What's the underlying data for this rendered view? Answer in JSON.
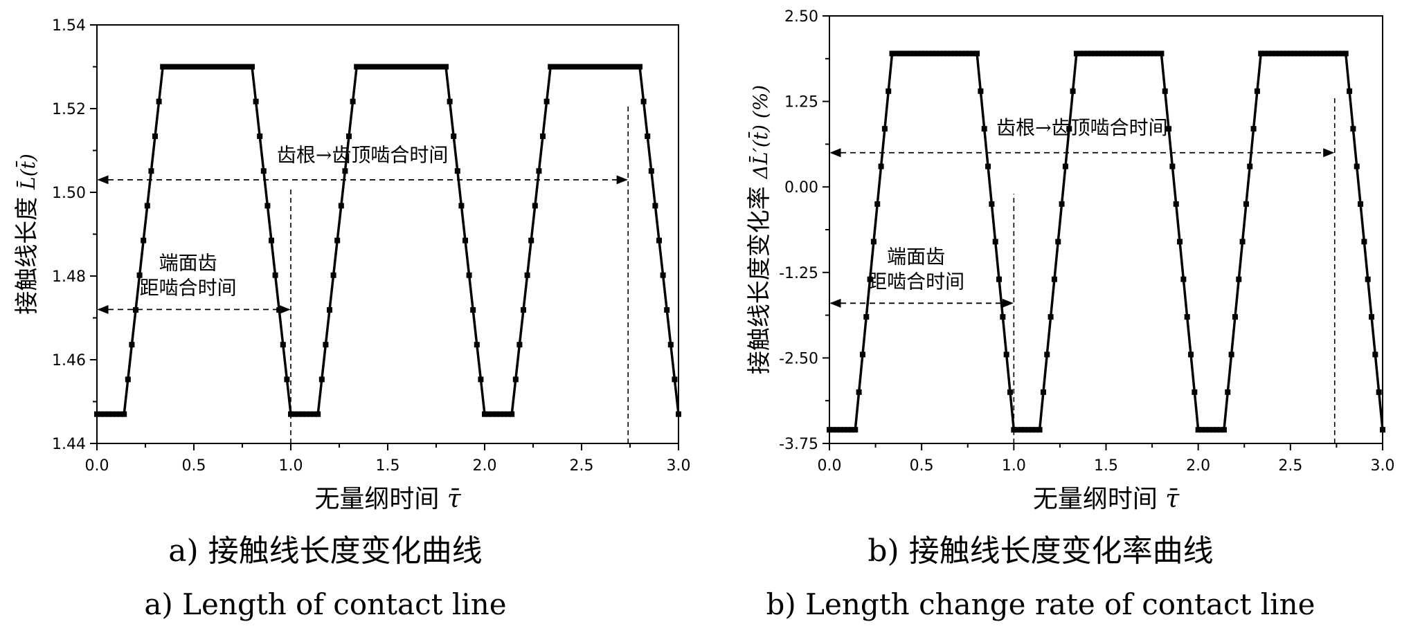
{
  "chart_data": [
    {
      "type": "line",
      "panel": "a",
      "xlabel_text": "无量纲时间",
      "xlabel_symbol": "τ̄",
      "ylabel_text": "接触线长度",
      "ylabel_symbol": "L̄(t̄)",
      "xlim": [
        0.0,
        3.0
      ],
      "ylim": [
        1.44,
        1.54
      ],
      "xticks": [
        "0.0",
        "0.5",
        "1.0",
        "1.5",
        "2.0",
        "2.5",
        "3.0"
      ],
      "yticks": [
        "1.44",
        "1.46",
        "1.48",
        "1.50",
        "1.52",
        "1.54"
      ],
      "series": [
        {
          "x": [
            0.0,
            0.14,
            0.34,
            0.8,
            1.0,
            1.0,
            1.14,
            1.34,
            1.8,
            2.0,
            2.0,
            2.14,
            2.34,
            2.8,
            3.0
          ],
          "y": [
            1.447,
            1.447,
            1.53,
            1.53,
            1.447,
            1.447,
            1.447,
            1.53,
            1.53,
            1.447,
            1.447,
            1.447,
            1.53,
            1.53,
            1.447
          ]
        }
      ],
      "annotations": [
        {
          "text": "齿根",
          "text2": "齿顶啮合时间",
          "arrow_y": 1.503,
          "x_from": 0.0,
          "x_to": 2.74,
          "label_y": 1.507
        },
        {
          "lines": [
            "端面齿",
            "距啮合时间"
          ],
          "arrow_y": 1.472,
          "x_from": 0.0,
          "x_to": 1.0,
          "label_y": 1.474
        }
      ],
      "vlines": [
        {
          "x": 1.0,
          "y_from": 1.44,
          "y_to": 1.501
        },
        {
          "x": 2.74,
          "y_from": 1.44,
          "y_to": 1.521
        }
      ],
      "caption_cn": "a)  接触线长度变化曲线",
      "caption_en": "a) Length of contact line"
    },
    {
      "type": "line",
      "panel": "b",
      "xlabel_text": "无量纲时间",
      "xlabel_symbol": "τ̄",
      "ylabel_text": "接触线长度变化率",
      "ylabel_symbol": "ΔL̄′(t̄) (%)",
      "xlim": [
        0.0,
        3.0
      ],
      "ylim": [
        -3.75,
        2.5
      ],
      "xticks": [
        "0.0",
        "0.5",
        "1.0",
        "1.5",
        "2.0",
        "2.5",
        "3.0"
      ],
      "yticks": [
        "-3.75",
        "-2.50",
        "-1.25",
        "0.00",
        "1.25",
        "2.50"
      ],
      "series": [
        {
          "x": [
            0.0,
            0.14,
            0.34,
            0.8,
            1.0,
            1.0,
            1.14,
            1.34,
            1.8,
            2.0,
            2.0,
            2.14,
            2.34,
            2.8,
            3.0
          ],
          "y": [
            -3.55,
            -3.55,
            1.95,
            1.95,
            -3.55,
            -3.55,
            -3.55,
            1.95,
            1.95,
            -3.55,
            -3.55,
            -3.55,
            1.95,
            1.95,
            -3.55
          ]
        }
      ],
      "annotations": [
        {
          "text": "齿根",
          "text2": "齿顶啮合时间",
          "arrow_y": 0.5,
          "x_from": 0.0,
          "x_to": 2.74,
          "label_y": 0.75
        },
        {
          "lines": [
            "端面齿",
            "距啮合时间"
          ],
          "arrow_y": -1.7,
          "x_from": 0.0,
          "x_to": 1.0,
          "label_y": -1.58
        }
      ],
      "vlines": [
        {
          "x": 1.0,
          "y_from": -3.75,
          "y_to": -0.1
        },
        {
          "x": 2.74,
          "y_from": -3.75,
          "y_to": 1.3
        }
      ],
      "caption_cn": "b)  接触线长度变化率曲线",
      "caption_en": "b) Length change rate of contact line"
    }
  ]
}
